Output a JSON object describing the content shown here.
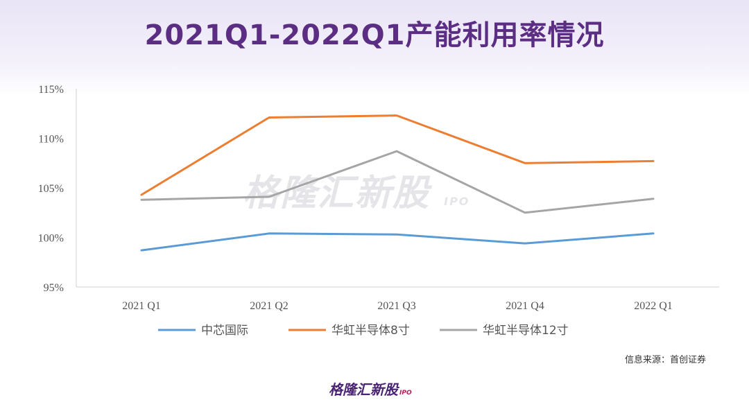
{
  "title": "2021Q1-2022Q1产能利用率情况",
  "source_note": "信息来源：首创证券",
  "logo": {
    "text": "格隆汇新股",
    "suffix": "IPO"
  },
  "watermark": {
    "text": "格隆汇新股",
    "suffix": "IPO"
  },
  "chart_data": {
    "type": "line",
    "categories": [
      "2021 Q1",
      "2021 Q2",
      "2021 Q3",
      "2021 Q4",
      "2022 Q1"
    ],
    "ylim": [
      95,
      115
    ],
    "yticks": [
      95,
      100,
      105,
      110,
      115
    ],
    "ytick_labels": [
      "95%",
      "100%",
      "105%",
      "110%",
      "115%"
    ],
    "legend_position": "bottom",
    "grid": false,
    "series": [
      {
        "name": "中芯国际",
        "color": "#5b9bd5",
        "values": [
          98.7,
          100.4,
          100.3,
          99.4,
          100.4
        ]
      },
      {
        "name": "华虹半导体8寸",
        "color": "#ed7d31",
        "values": [
          104.3,
          112.1,
          112.3,
          107.5,
          107.7
        ]
      },
      {
        "name": "华虹半导体12寸",
        "color": "#a5a5a5",
        "values": [
          103.8,
          104.1,
          108.7,
          102.5,
          103.9
        ]
      }
    ]
  }
}
